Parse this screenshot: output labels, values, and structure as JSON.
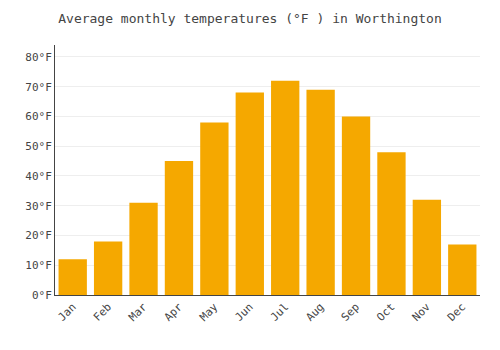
{
  "chart_data": {
    "type": "bar",
    "title": "Average monthly temperatures (°F ) in Worthington",
    "categories": [
      "Jan",
      "Feb",
      "Mar",
      "Apr",
      "May",
      "Jun",
      "Jul",
      "Aug",
      "Sep",
      "Oct",
      "Nov",
      "Dec"
    ],
    "values": [
      12,
      18,
      31,
      45,
      58,
      68,
      72,
      69,
      60,
      48,
      32,
      17
    ],
    "color": "#F5A800",
    "ylim": [
      0,
      84
    ],
    "yticks": [
      {
        "value": 0,
        "label": "0°F"
      },
      {
        "value": 10,
        "label": "10°F"
      },
      {
        "value": 20,
        "label": "20°F"
      },
      {
        "value": 30,
        "label": "30°F"
      },
      {
        "value": 40,
        "label": "40°F"
      },
      {
        "value": 50,
        "label": "50°F"
      },
      {
        "value": 60,
        "label": "60°F"
      },
      {
        "value": 70,
        "label": "70°F"
      },
      {
        "value": 80,
        "label": "80°F"
      }
    ],
    "grid": true
  }
}
